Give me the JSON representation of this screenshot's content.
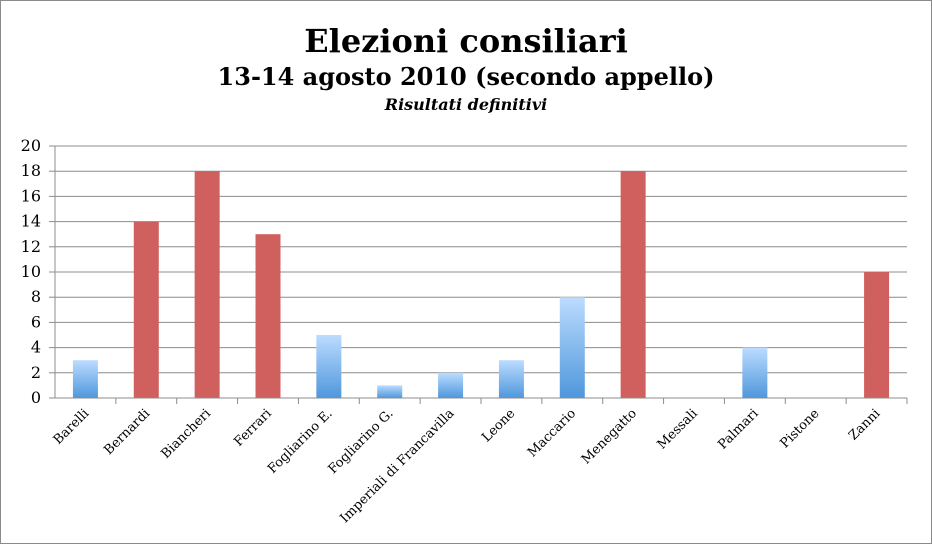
{
  "chart_data": {
    "type": "bar",
    "title": "Elezioni consiliari",
    "subtitle": "13-14 agosto 2010 (secondo appello)",
    "note": "Risultati definitivi",
    "xlabel": "",
    "ylabel": "",
    "ylim": [
      0,
      20
    ],
    "yticks": [
      0,
      2,
      4,
      6,
      8,
      10,
      12,
      14,
      16,
      18,
      20
    ],
    "grid": true,
    "legend": "none",
    "colors": {
      "red": "#d0605e",
      "blue_top": "#bcdcff",
      "blue_bottom": "#4f97dc"
    },
    "categories": [
      "Barelli",
      "Bernardi",
      "Biancheri",
      "Ferrari",
      "Fogliarino E.",
      "Fogliarino G.",
      "Imperiali di Francavilla",
      "Leone",
      "Maccario",
      "Menegatto",
      "Messali",
      "Palmari",
      "Pistone",
      "Zanni"
    ],
    "values": [
      3,
      14,
      18,
      13,
      5,
      1,
      2,
      3,
      8,
      18,
      0,
      4,
      0,
      10
    ],
    "bar_colors": [
      "blue",
      "red",
      "red",
      "red",
      "blue",
      "blue",
      "blue",
      "blue",
      "blue",
      "red",
      "blue",
      "blue",
      "blue",
      "red"
    ]
  }
}
